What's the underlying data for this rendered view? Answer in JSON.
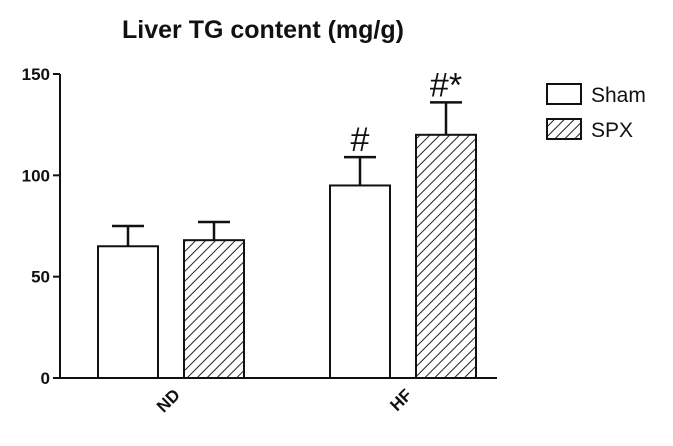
{
  "chart_data": {
    "type": "bar",
    "title": "Liver TG content (mg/g)",
    "xlabel": "",
    "ylabel": "",
    "ylim": [
      0,
      150
    ],
    "yticks": [
      0,
      50,
      100,
      150
    ],
    "ytick_labels": [
      "0",
      "50",
      "100",
      "150"
    ],
    "categories": [
      "ND",
      "HF"
    ],
    "series": [
      {
        "name": "Sham",
        "values": [
          65,
          95
        ],
        "errors": [
          10,
          14
        ],
        "pattern": "open"
      },
      {
        "name": "SPX",
        "values": [
          68,
          120
        ],
        "errors": [
          9,
          16
        ],
        "pattern": "hatched"
      }
    ],
    "annotations": [
      {
        "category": "HF",
        "series": "Sham",
        "text": "#"
      },
      {
        "category": "HF",
        "series": "SPX",
        "text": "#*"
      }
    ],
    "legend_position": "top-right",
    "grid": false
  }
}
